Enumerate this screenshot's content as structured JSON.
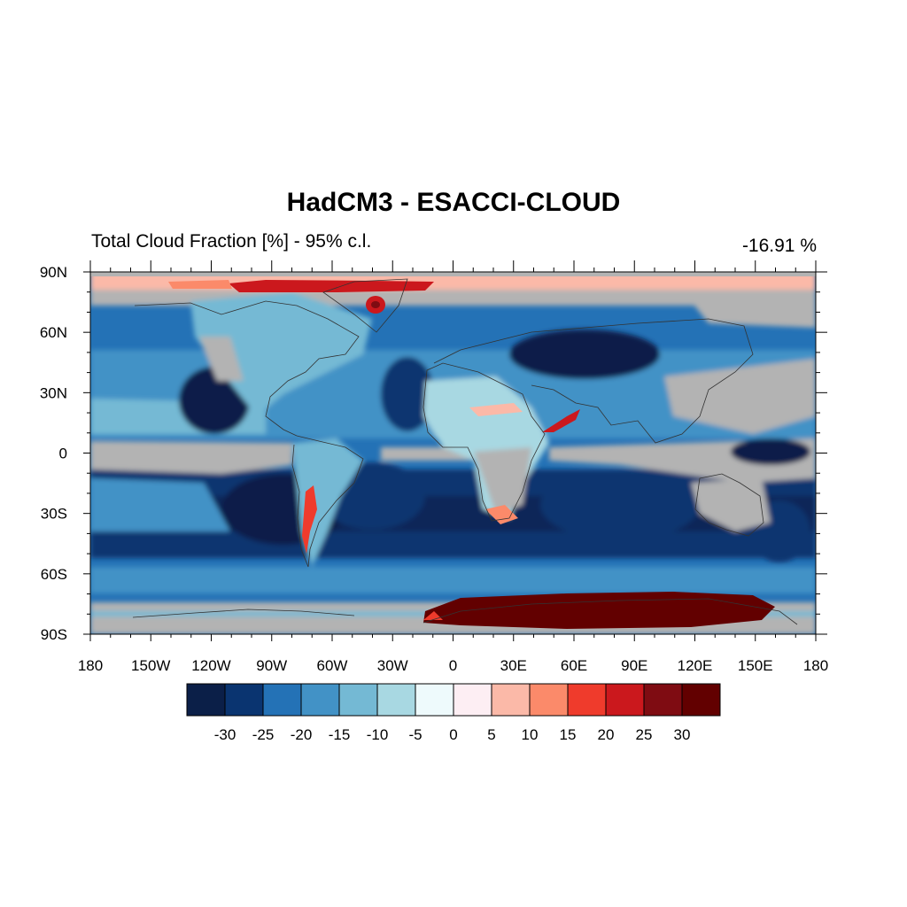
{
  "map": {
    "title": "HadCM3 - ESACCI-CLOUD",
    "subtitle": "Total Cloud Fraction [%] - 95% c.l.",
    "mean_value": "-16.91 %",
    "projection": "cylindrical equidistant",
    "lon_range": [
      -180,
      180
    ],
    "lat_range": [
      -90,
      90
    ],
    "lat_labels": [
      "90N",
      "60N",
      "30N",
      "0",
      "30S",
      "60S",
      "90S"
    ],
    "lon_labels": [
      "180",
      "150W",
      "120W",
      "90W",
      "60W",
      "30W",
      "0",
      "30E",
      "60E",
      "90E",
      "120E",
      "150E",
      "180"
    ],
    "insignificant_color": "#b3b3b3",
    "coastline_color": "#333333"
  },
  "colorbar": {
    "colors": [
      "#0b1f48",
      "#0a3470",
      "#2472b6",
      "#4292c6",
      "#74b9d4",
      "#a8d8e2",
      "#eefafc",
      "#fdeef3",
      "#fbb9a8",
      "#fb8a6a",
      "#ef3b2c",
      "#cb181d",
      "#7f0c12",
      "#620000"
    ],
    "labels": [
      "-30",
      "-25",
      "-20",
      "-15",
      "-10",
      "-5",
      "0",
      "5",
      "10",
      "15",
      "20",
      "25",
      "30"
    ]
  }
}
